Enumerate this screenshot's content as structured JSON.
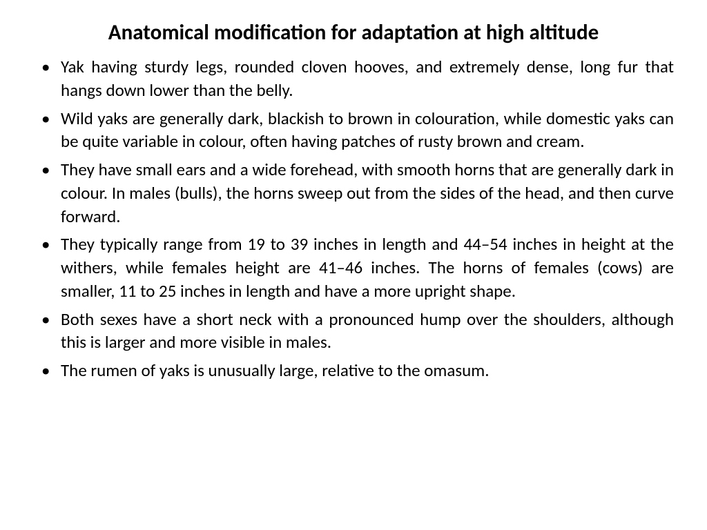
{
  "document": {
    "title": "Anatomical modification for adaptation at high altitude",
    "bullets": [
      "Yak having sturdy legs, rounded cloven hooves, and extremely dense, long fur that hangs down lower than the belly.",
      "Wild yaks are generally dark, blackish to brown in colouration, while domestic yaks can be quite variable in colour, often having patches of rusty brown and cream.",
      "They have small ears and a wide forehead, with smooth horns that are generally dark in colour. In males (bulls), the horns sweep out from the sides of the head, and then curve forward.",
      "They typically range from 19 to 39 inches in length and 44–54 inches in height at the withers, while females height are 41–46 inches. The horns of females (cows) are smaller, 11 to 25 inches in length and have a more upright shape.",
      "Both sexes have a short neck with a pronounced hump over the shoulders, although this is larger and more visible in males.",
      "The rumen of yaks is unusually large, relative to the omasum."
    ],
    "styling": {
      "background_color": "#ffffff",
      "text_color": "#000000",
      "title_fontsize": 31,
      "title_weight": "bold",
      "body_fontsize": 25,
      "font_family": "Calibri",
      "text_align": "justify",
      "bullet_symbol": "•"
    }
  }
}
